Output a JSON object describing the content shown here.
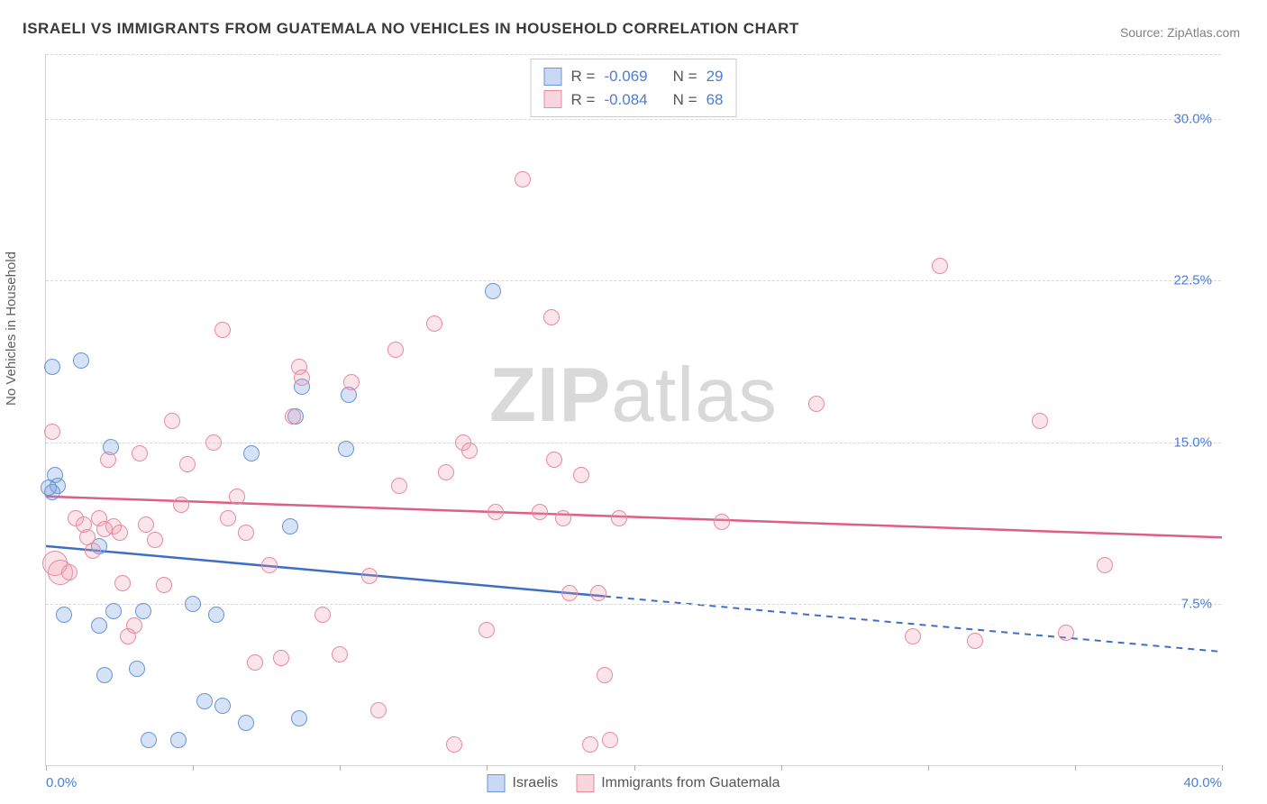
{
  "title": "ISRAELI VS IMMIGRANTS FROM GUATEMALA NO VEHICLES IN HOUSEHOLD CORRELATION CHART",
  "source_prefix": "Source: ",
  "source_link": "ZipAtlas.com",
  "ylabel": "No Vehicles in Household",
  "watermark_bold": "ZIP",
  "watermark_rest": "atlas",
  "chart": {
    "type": "scatter-correlation",
    "xlim": [
      0,
      40
    ],
    "ylim": [
      0,
      33
    ],
    "yticks": [
      7.5,
      15.0,
      22.5,
      30.0
    ],
    "ytick_labels": [
      "7.5%",
      "15.0%",
      "22.5%",
      "30.0%"
    ],
    "xticks": [
      0,
      5,
      10,
      15,
      20,
      25,
      30,
      35,
      40
    ],
    "xtick_labels_shown": {
      "0": "0.0%",
      "40": "40.0%"
    },
    "grid_color": "#d8d8d8",
    "border_color": "#d5d5d5",
    "background": "#ffffff",
    "marker_radius": 9,
    "series": [
      {
        "key": "israelis",
        "name": "Israelis",
        "color_fill": "rgba(120,160,225,0.30)",
        "color_stroke": "#6a95d8",
        "line_color": "#3f6fc2",
        "R": "-0.069",
        "N": "29",
        "trend": {
          "y_at_x0": 10.2,
          "y_at_x40": 5.3,
          "solid_until_x": 19
        },
        "points": [
          [
            0.2,
            18.5
          ],
          [
            1.2,
            18.8
          ],
          [
            0.3,
            13.5
          ],
          [
            0.4,
            13.0
          ],
          [
            0.2,
            12.7
          ],
          [
            2.2,
            14.8
          ],
          [
            1.8,
            10.2
          ],
          [
            0.6,
            7.0
          ],
          [
            1.8,
            6.5
          ],
          [
            2.3,
            7.2
          ],
          [
            2.0,
            4.2
          ],
          [
            3.3,
            7.2
          ],
          [
            3.1,
            4.5
          ],
          [
            3.5,
            1.2
          ],
          [
            4.5,
            1.2
          ],
          [
            5.0,
            7.5
          ],
          [
            5.4,
            3.0
          ],
          [
            5.8,
            7.0
          ],
          [
            6.0,
            2.8
          ],
          [
            7.0,
            14.5
          ],
          [
            6.8,
            2.0
          ],
          [
            8.3,
            11.1
          ],
          [
            8.6,
            2.2
          ],
          [
            8.5,
            16.2
          ],
          [
            8.7,
            17.6
          ],
          [
            10.2,
            14.7
          ],
          [
            10.3,
            17.2
          ],
          [
            15.2,
            22.0
          ],
          [
            0.1,
            12.9
          ]
        ]
      },
      {
        "key": "guatemala",
        "name": "Immigrants from Guatemala",
        "color_fill": "rgba(240,150,170,0.25)",
        "color_stroke": "#e88aa0",
        "line_color": "#de5f84",
        "R": "-0.084",
        "N": "68",
        "trend": {
          "y_at_x0": 12.5,
          "y_at_x40": 10.6,
          "solid_until_x": 40
        },
        "points": [
          [
            0.2,
            15.5
          ],
          [
            0.3,
            9.4,
            14
          ],
          [
            0.5,
            9.0,
            14
          ],
          [
            1.0,
            11.5
          ],
          [
            1.3,
            11.2
          ],
          [
            1.4,
            10.6
          ],
          [
            1.8,
            11.5
          ],
          [
            2.0,
            11.0
          ],
          [
            2.1,
            14.2
          ],
          [
            2.3,
            11.1
          ],
          [
            2.5,
            10.8
          ],
          [
            2.6,
            8.5
          ],
          [
            3.2,
            14.5
          ],
          [
            3.4,
            11.2
          ],
          [
            3.7,
            10.5
          ],
          [
            4.0,
            8.4
          ],
          [
            4.3,
            16.0
          ],
          [
            4.8,
            14.0
          ],
          [
            6.0,
            20.2
          ],
          [
            6.2,
            11.5
          ],
          [
            6.5,
            12.5
          ],
          [
            6.8,
            10.8
          ],
          [
            7.1,
            4.8
          ],
          [
            7.6,
            9.3
          ],
          [
            8.0,
            5.0
          ],
          [
            8.4,
            16.2
          ],
          [
            8.6,
            18.5
          ],
          [
            8.7,
            18.0
          ],
          [
            9.4,
            7.0
          ],
          [
            10.0,
            5.2
          ],
          [
            10.4,
            17.8
          ],
          [
            11.0,
            8.8
          ],
          [
            11.3,
            2.6
          ],
          [
            11.9,
            19.3
          ],
          [
            12.0,
            13.0
          ],
          [
            13.2,
            20.5
          ],
          [
            13.6,
            13.6
          ],
          [
            13.9,
            1.0
          ],
          [
            14.2,
            15.0
          ],
          [
            14.4,
            14.6
          ],
          [
            15.0,
            6.3
          ],
          [
            15.3,
            11.8
          ],
          [
            16.2,
            27.2
          ],
          [
            16.8,
            11.8
          ],
          [
            17.2,
            20.8
          ],
          [
            17.3,
            14.2
          ],
          [
            17.6,
            11.5
          ],
          [
            17.8,
            8.0
          ],
          [
            18.2,
            13.5
          ],
          [
            18.5,
            1.0
          ],
          [
            18.8,
            8.0
          ],
          [
            19.0,
            4.2
          ],
          [
            19.2,
            1.2
          ],
          [
            19.5,
            11.5
          ],
          [
            23.0,
            11.3
          ],
          [
            26.2,
            16.8
          ],
          [
            29.5,
            6.0
          ],
          [
            30.4,
            23.2
          ],
          [
            31.6,
            5.8
          ],
          [
            33.8,
            16.0
          ],
          [
            34.7,
            6.2
          ],
          [
            36.0,
            9.3
          ],
          [
            5.7,
            15.0
          ],
          [
            3.0,
            6.5
          ],
          [
            0.8,
            9.0
          ],
          [
            1.6,
            10.0
          ],
          [
            2.8,
            6.0
          ],
          [
            4.6,
            12.1
          ]
        ]
      }
    ]
  },
  "legend_bottom": [
    {
      "swatch": "blue",
      "label": "Israelis"
    },
    {
      "swatch": "pink",
      "label": "Immigrants from Guatemala"
    }
  ]
}
